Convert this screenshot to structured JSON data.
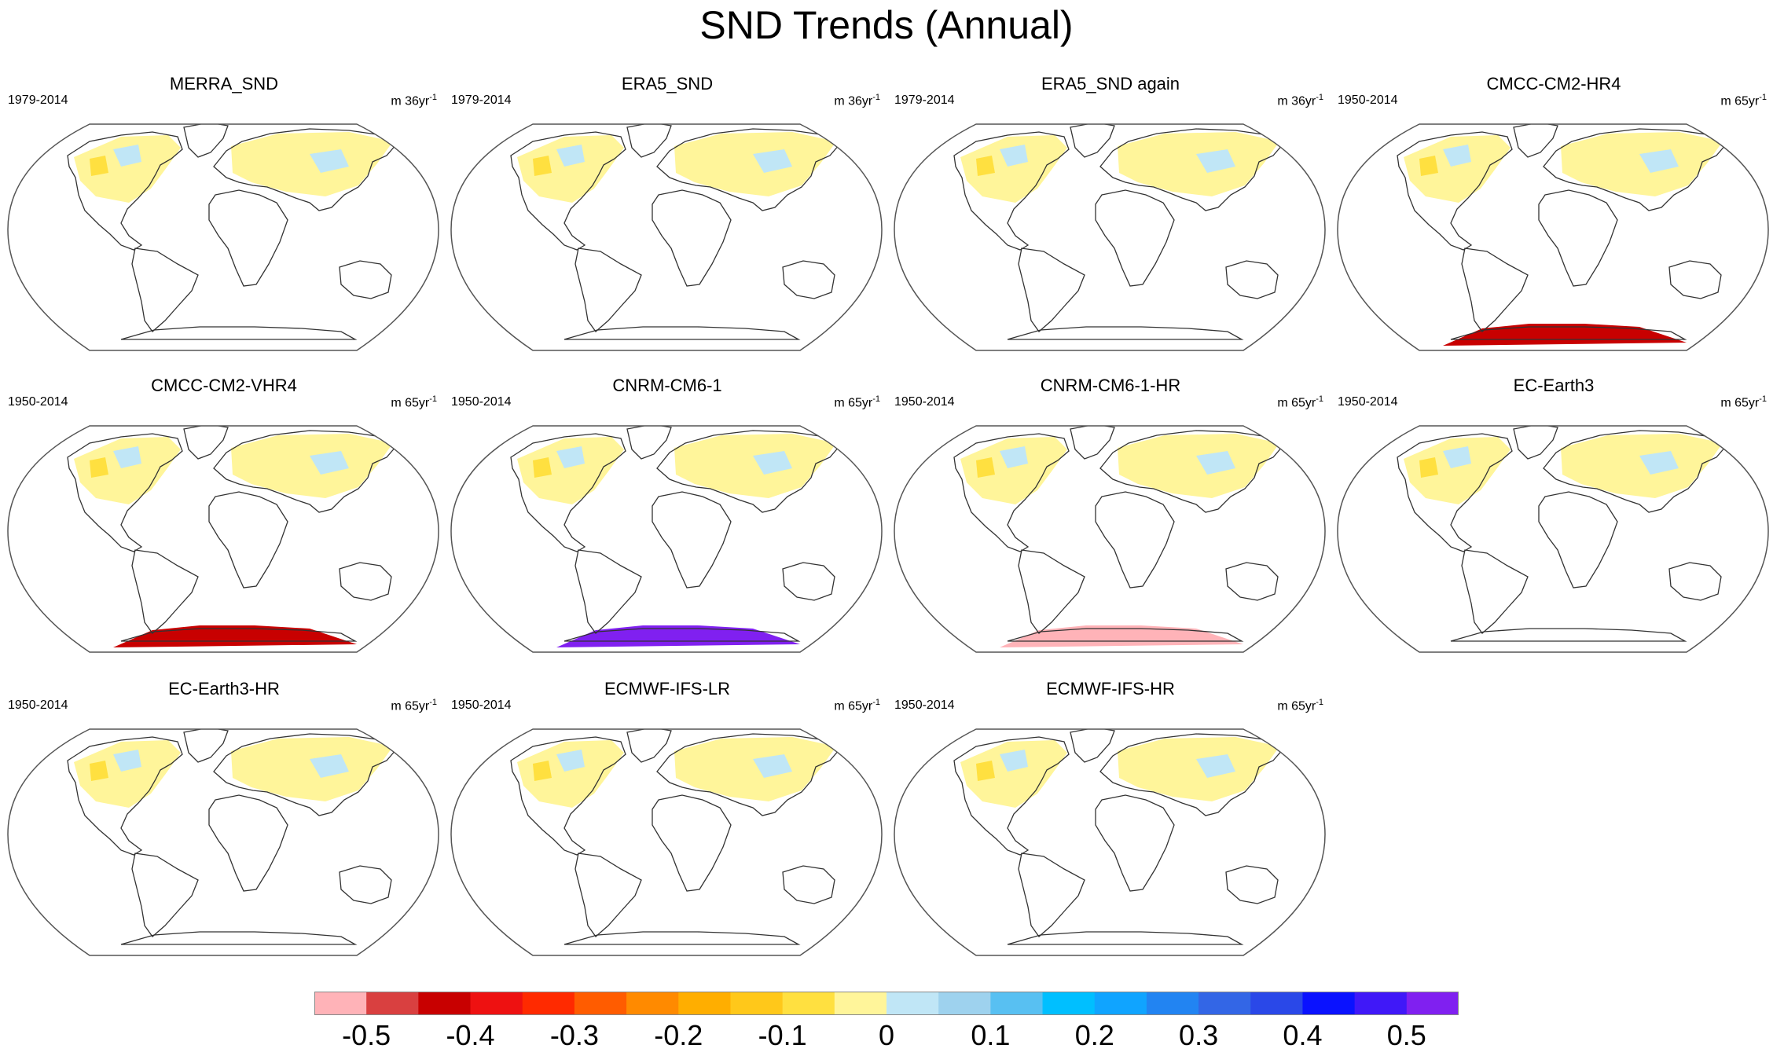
{
  "title": "SND Trends (Annual)",
  "panels": [
    {
      "name": "MERRA_SND",
      "period": "1979-2014",
      "units_base": "m 36yr",
      "units_exp": "-1",
      "antarctic": "none"
    },
    {
      "name": "ERA5_SND",
      "period": "1979-2014",
      "units_base": "m 36yr",
      "units_exp": "-1",
      "antarctic": "none"
    },
    {
      "name": "ERA5_SND again",
      "period": "1979-2014",
      "units_base": "m 36yr",
      "units_exp": "-1",
      "antarctic": "none"
    },
    {
      "name": "CMCC-CM2-HR4",
      "period": "1950-2014",
      "units_base": "m 65yr",
      "units_exp": "-1",
      "antarctic": "red"
    },
    {
      "name": "CMCC-CM2-VHR4",
      "period": "1950-2014",
      "units_base": "m 65yr",
      "units_exp": "-1",
      "antarctic": "red"
    },
    {
      "name": "CNRM-CM6-1",
      "period": "1950-2014",
      "units_base": "m 65yr",
      "units_exp": "-1",
      "antarctic": "purple"
    },
    {
      "name": "CNRM-CM6-1-HR",
      "period": "1950-2014",
      "units_base": "m 65yr",
      "units_exp": "-1",
      "antarctic": "pink"
    },
    {
      "name": "EC-Earth3",
      "period": "1950-2014",
      "units_base": "m 65yr",
      "units_exp": "-1",
      "antarctic": "none"
    },
    {
      "name": "EC-Earth3-HR",
      "period": "1950-2014",
      "units_base": "m 65yr",
      "units_exp": "-1",
      "antarctic": "none"
    },
    {
      "name": "ECMWF-IFS-LR",
      "period": "1950-2014",
      "units_base": "m 65yr",
      "units_exp": "-1",
      "antarctic": "none"
    },
    {
      "name": "ECMWF-IFS-HR",
      "period": "1950-2014",
      "units_base": "m 65yr",
      "units_exp": "-1",
      "antarctic": "none"
    }
  ],
  "colorbar": {
    "colors": [
      "#ffb3b8",
      "#d94040",
      "#c80000",
      "#ee1111",
      "#ff2a00",
      "#ff5c00",
      "#ff8a00",
      "#ffae00",
      "#ffc81a",
      "#ffe040",
      "#fff59a",
      "#c0e6f6",
      "#9ed2ee",
      "#58c0f2",
      "#00bfff",
      "#10a4ff",
      "#2284f2",
      "#3366e6",
      "#2a48e8",
      "#0a12ff",
      "#4018f8",
      "#8020f0"
    ],
    "labels": [
      "-0.5",
      "-0.4",
      "-0.3",
      "-0.2",
      "-0.1",
      "0",
      "0.1",
      "0.2",
      "0.3",
      "0.4",
      "0.5"
    ],
    "label_boundaries": [
      1,
      3,
      5,
      7,
      9,
      11,
      13,
      15,
      17,
      19,
      21
    ]
  },
  "legend_colors": {
    "land_outline": "#333333",
    "map_border": "#555555",
    "yellow_trend": "#fff59a",
    "light_yellow": "#ffe040",
    "light_blue": "#c0e6f6",
    "red_trend": "#c80000",
    "purple_trend": "#8020f0",
    "pink_trend": "#ffb3b8"
  }
}
